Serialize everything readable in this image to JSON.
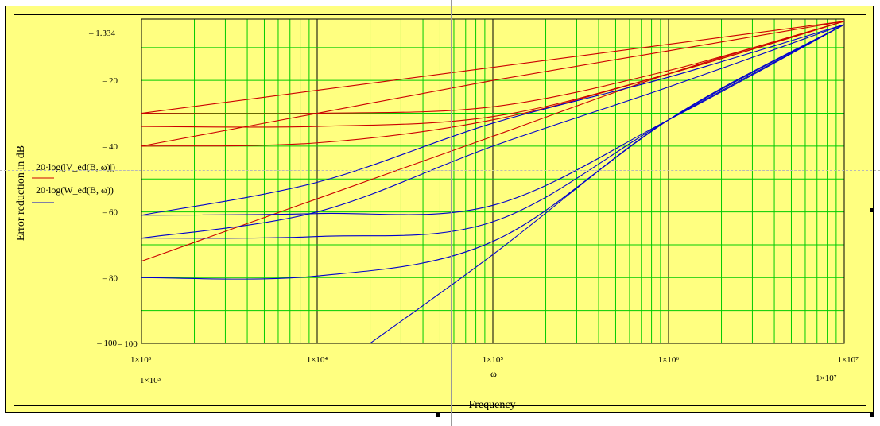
{
  "chart_data": {
    "type": "line",
    "x_scale": "log",
    "xlim": [
      1000,
      10000000
    ],
    "ylim": [
      -100,
      -1.334
    ],
    "y_ticks": [
      -20,
      -40,
      -60,
      -80,
      -100
    ],
    "y_tick_labels": [
      "– 20",
      "– 40",
      "– 60",
      "– 80",
      "– 100"
    ],
    "y_top_label": "– 1.334",
    "y_bottom_label": "– 100",
    "x_ticks": [
      1000,
      10000,
      100000,
      1000000,
      10000000
    ],
    "x_tick_labels": [
      "1×10³",
      "1×10⁴",
      "1×10⁵",
      "1×10⁶",
      "1×10⁷"
    ],
    "x_min_label": "1×10³",
    "x_max_label": "1×10⁷",
    "xlabel": "ω",
    "xlabel2": "Frequency",
    "ylabel": "Error reduction in dB",
    "grid": true,
    "legend": [
      {
        "text": "20·log(|V_ed(B, ω)|)",
        "color": "#cc0000"
      },
      {
        "text": "20·log(W_ed(B, ω))",
        "color": "#0000cc"
      }
    ],
    "series": [
      {
        "color": "#cc0000",
        "x": [
          1000,
          10000,
          100000,
          1000000,
          10000000
        ],
        "y": [
          -30,
          -23,
          -16,
          -9,
          -2
        ]
      },
      {
        "color": "#cc0000",
        "x": [
          1000,
          10000,
          100000,
          1000000,
          10000000
        ],
        "y": [
          -40,
          -30,
          -20,
          -11,
          -2
        ]
      },
      {
        "color": "#cc0000",
        "x": [
          1000,
          10000,
          100000,
          1000000,
          10000000
        ],
        "y": [
          -30,
          -30,
          -28,
          -17,
          -2
        ]
      },
      {
        "color": "#cc0000",
        "x": [
          1000,
          10000,
          100000,
          1000000,
          10000000
        ],
        "y": [
          -34,
          -34,
          -31,
          -18,
          -2
        ]
      },
      {
        "color": "#cc0000",
        "x": [
          1000,
          10000,
          100000,
          1000000,
          10000000
        ],
        "y": [
          -40,
          -39,
          -32,
          -18,
          -2
        ]
      },
      {
        "color": "#cc0000",
        "x": [
          1000,
          10000,
          100000,
          1000000,
          10000000
        ],
        "y": [
          -75,
          -56,
          -37,
          -18,
          -2
        ]
      },
      {
        "color": "#0000cc",
        "x": [
          1000,
          10000,
          100000,
          1000000,
          10000000
        ],
        "y": [
          -61,
          -51,
          -33,
          -19,
          -3
        ]
      },
      {
        "color": "#0000cc",
        "x": [
          1000,
          10000,
          100000,
          1000000,
          10000000
        ],
        "y": [
          -68,
          -60,
          -40,
          -22,
          -3
        ]
      },
      {
        "color": "#0000cc",
        "x": [
          1000,
          10000,
          100000,
          1000000,
          10000000
        ],
        "y": [
          -61,
          -60.5,
          -58,
          -32,
          -3
        ]
      },
      {
        "color": "#0000cc",
        "x": [
          1000,
          10000,
          100000,
          1000000,
          10000000
        ],
        "y": [
          -68,
          -67.5,
          -63,
          -32,
          -3
        ]
      },
      {
        "color": "#0000cc",
        "x": [
          1000,
          10000,
          100000,
          1000000,
          10000000
        ],
        "y": [
          -80,
          -79.5,
          -69,
          -32,
          -3
        ]
      },
      {
        "color": "#0000cc",
        "x": [
          20000,
          100000,
          1000000,
          10000000
        ],
        "y": [
          -100,
          -73,
          -32,
          -3
        ]
      }
    ]
  }
}
